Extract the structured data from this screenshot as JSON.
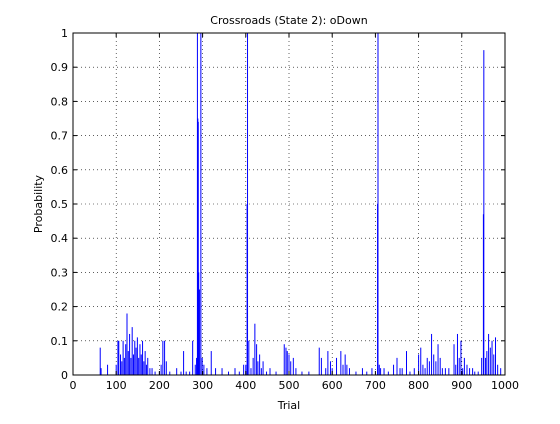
{
  "chart_data": {
    "type": "line",
    "title": "Crossroads (State 2): oDown",
    "xlabel": "Trial",
    "ylabel": "Probability",
    "xlim": [
      0,
      1000
    ],
    "ylim": [
      0,
      1
    ],
    "xticks": [
      0,
      100,
      200,
      300,
      400,
      500,
      600,
      700,
      800,
      900,
      1000
    ],
    "yticks": [
      0,
      0.1,
      0.2,
      0.3,
      0.4,
      0.5,
      0.6,
      0.7,
      0.8,
      0.9,
      1
    ],
    "xtick_labels": [
      "0",
      "100",
      "200",
      "300",
      "400",
      "500",
      "600",
      "700",
      "800",
      "900",
      "1000"
    ],
    "ytick_labels": [
      "0",
      "0.1",
      "0.2",
      "0.3",
      "0.4",
      "0.5",
      "0.6",
      "0.7",
      "0.8",
      "0.9",
      "1"
    ],
    "grid": true,
    "series": [
      {
        "color": "#0000ff",
        "points": [
          [
            63,
            0.08
          ],
          [
            65,
            0.02
          ],
          [
            80,
            0.03
          ],
          [
            100,
            0.03
          ],
          [
            104,
            0.1
          ],
          [
            106,
            0.1
          ],
          [
            110,
            0.06
          ],
          [
            113,
            0.04
          ],
          [
            116,
            0.1
          ],
          [
            119,
            0.05
          ],
          [
            122,
            0.09
          ],
          [
            125,
            0.18
          ],
          [
            128,
            0.07
          ],
          [
            131,
            0.12
          ],
          [
            134,
            0.05
          ],
          [
            137,
            0.14
          ],
          [
            140,
            0.06
          ],
          [
            143,
            0.1
          ],
          [
            146,
            0.08
          ],
          [
            149,
            0.11
          ],
          [
            152,
            0.05
          ],
          [
            155,
            0.09
          ],
          [
            158,
            0.06
          ],
          [
            161,
            0.1
          ],
          [
            164,
            0.04
          ],
          [
            167,
            0.07
          ],
          [
            170,
            0.03
          ],
          [
            173,
            0.05
          ],
          [
            178,
            0.02
          ],
          [
            183,
            0.02
          ],
          [
            190,
            0.01
          ],
          [
            200,
            0.01
          ],
          [
            204,
            0.03
          ],
          [
            208,
            0.1
          ],
          [
            212,
            0.1
          ],
          [
            216,
            0.04
          ],
          [
            224,
            0.01
          ],
          [
            240,
            0.02
          ],
          [
            250,
            0.01
          ],
          [
            256,
            0.07
          ],
          [
            262,
            0.01
          ],
          [
            270,
            0.01
          ],
          [
            277,
            0.1
          ],
          [
            283,
            0.03
          ],
          [
            286,
            0.05
          ],
          [
            288,
            1.0
          ],
          [
            289,
            0.75
          ],
          [
            290,
            0.74
          ],
          [
            291,
            0.3
          ],
          [
            293,
            0.25
          ],
          [
            296,
            1.0
          ],
          [
            299,
            0.05
          ],
          [
            303,
            0.03
          ],
          [
            310,
            0.02
          ],
          [
            320,
            0.07
          ],
          [
            330,
            0.02
          ],
          [
            345,
            0.02
          ],
          [
            360,
            0.01
          ],
          [
            375,
            0.02
          ],
          [
            385,
            0.01
          ],
          [
            395,
            0.03
          ],
          [
            400,
            0.03
          ],
          [
            403,
            0.5
          ],
          [
            404,
            1.0
          ],
          [
            407,
            0.1
          ],
          [
            412,
            0.02
          ],
          [
            417,
            0.05
          ],
          [
            421,
            0.15
          ],
          [
            425,
            0.09
          ],
          [
            428,
            0.04
          ],
          [
            432,
            0.06
          ],
          [
            436,
            0.02
          ],
          [
            440,
            0.04
          ],
          [
            448,
            0.01
          ],
          [
            456,
            0.02
          ],
          [
            470,
            0.01
          ],
          [
            489,
            0.09
          ],
          [
            493,
            0.08
          ],
          [
            496,
            0.07
          ],
          [
            500,
            0.06
          ],
          [
            504,
            0.04
          ],
          [
            510,
            0.05
          ],
          [
            516,
            0.02
          ],
          [
            530,
            0.01
          ],
          [
            546,
            0.01
          ],
          [
            570,
            0.08
          ],
          [
            575,
            0.05
          ],
          [
            585,
            0.02
          ],
          [
            590,
            0.07
          ],
          [
            596,
            0.04
          ],
          [
            600,
            0.02
          ],
          [
            610,
            0.05
          ],
          [
            620,
            0.07
          ],
          [
            625,
            0.03
          ],
          [
            630,
            0.06
          ],
          [
            634,
            0.03
          ],
          [
            640,
            0.02
          ],
          [
            655,
            0.01
          ],
          [
            670,
            0.02
          ],
          [
            680,
            0.01
          ],
          [
            692,
            0.02
          ],
          [
            705,
            0.5
          ],
          [
            706,
            1.0
          ],
          [
            709,
            0.03
          ],
          [
            712,
            0.02
          ],
          [
            720,
            0.02
          ],
          [
            730,
            0.01
          ],
          [
            742,
            0.03
          ],
          [
            750,
            0.05
          ],
          [
            757,
            0.02
          ],
          [
            762,
            0.02
          ],
          [
            772,
            0.07
          ],
          [
            780,
            0.01
          ],
          [
            790,
            0.02
          ],
          [
            800,
            0.06
          ],
          [
            805,
            0.08
          ],
          [
            810,
            0.03
          ],
          [
            815,
            0.02
          ],
          [
            820,
            0.05
          ],
          [
            825,
            0.04
          ],
          [
            830,
            0.12
          ],
          [
            835,
            0.06
          ],
          [
            840,
            0.04
          ],
          [
            845,
            0.09
          ],
          [
            850,
            0.05
          ],
          [
            855,
            0.02
          ],
          [
            862,
            0.02
          ],
          [
            870,
            0.02
          ],
          [
            882,
            0.09
          ],
          [
            886,
            0.03
          ],
          [
            890,
            0.12
          ],
          [
            894,
            0.05
          ],
          [
            898,
            0.1
          ],
          [
            902,
            0.02
          ],
          [
            906,
            0.05
          ],
          [
            912,
            0.03
          ],
          [
            918,
            0.02
          ],
          [
            925,
            0.02
          ],
          [
            930,
            0.01
          ],
          [
            938,
            0.01
          ],
          [
            946,
            0.05
          ],
          [
            950,
            0.47
          ],
          [
            951,
            0.95
          ],
          [
            955,
            0.05
          ],
          [
            958,
            0.07
          ],
          [
            962,
            0.12
          ],
          [
            966,
            0.08
          ],
          [
            970,
            0.1
          ],
          [
            974,
            0.06
          ],
          [
            978,
            0.11
          ],
          [
            983,
            0.03
          ],
          [
            990,
            0.02
          ]
        ]
      }
    ]
  }
}
